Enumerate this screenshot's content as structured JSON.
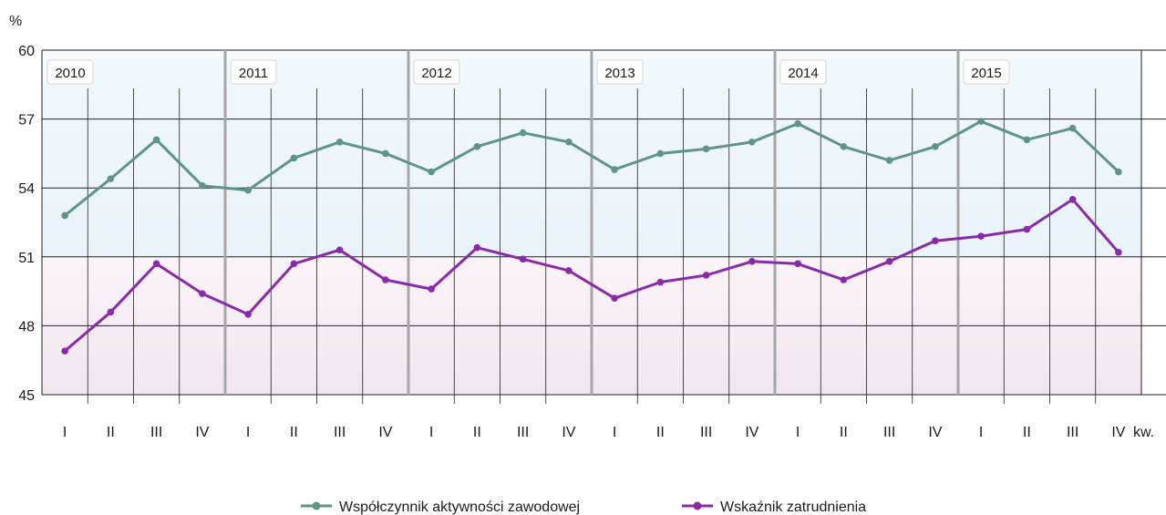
{
  "chart_data": {
    "type": "line",
    "ylabel": "%",
    "xlabel": "kw.",
    "ylim": [
      45,
      60
    ],
    "yticks": [
      45,
      48,
      51,
      54,
      57,
      60
    ],
    "grid": true,
    "years": [
      "2010",
      "2011",
      "2012",
      "2013",
      "2014",
      "2015"
    ],
    "quarters": [
      "I",
      "II",
      "III",
      "IV"
    ],
    "categories": [
      "I",
      "II",
      "III",
      "IV",
      "I",
      "II",
      "III",
      "IV",
      "I",
      "II",
      "III",
      "IV",
      "I",
      "II",
      "III",
      "IV",
      "I",
      "II",
      "III",
      "IV",
      "I",
      "II",
      "III",
      "IV"
    ],
    "series": [
      {
        "name": "Współczynnik aktywności zawodowej",
        "color": "#5e9586",
        "values": [
          52.8,
          54.4,
          56.1,
          54.1,
          53.9,
          55.3,
          56.0,
          55.5,
          54.7,
          55.8,
          56.4,
          56.0,
          54.8,
          55.5,
          55.7,
          56.0,
          56.8,
          55.8,
          55.2,
          55.8,
          56.9,
          56.1,
          56.6,
          54.7
        ]
      },
      {
        "name": "Wskaźnik zatrudnienia",
        "color": "#8a2aa8",
        "values": [
          46.9,
          48.6,
          50.7,
          49.4,
          48.5,
          50.7,
          51.3,
          50.0,
          49.6,
          51.4,
          50.9,
          50.4,
          49.2,
          49.9,
          50.2,
          50.8,
          50.7,
          50.0,
          50.8,
          51.7,
          51.9,
          52.2,
          53.5,
          51.2
        ]
      }
    ],
    "legend_position": "bottom",
    "colors": {
      "upper_band": "#eef6fb",
      "lower_band": "#f6eef5",
      "grid": "#222222",
      "year_divider": "#a6a6a6"
    }
  }
}
